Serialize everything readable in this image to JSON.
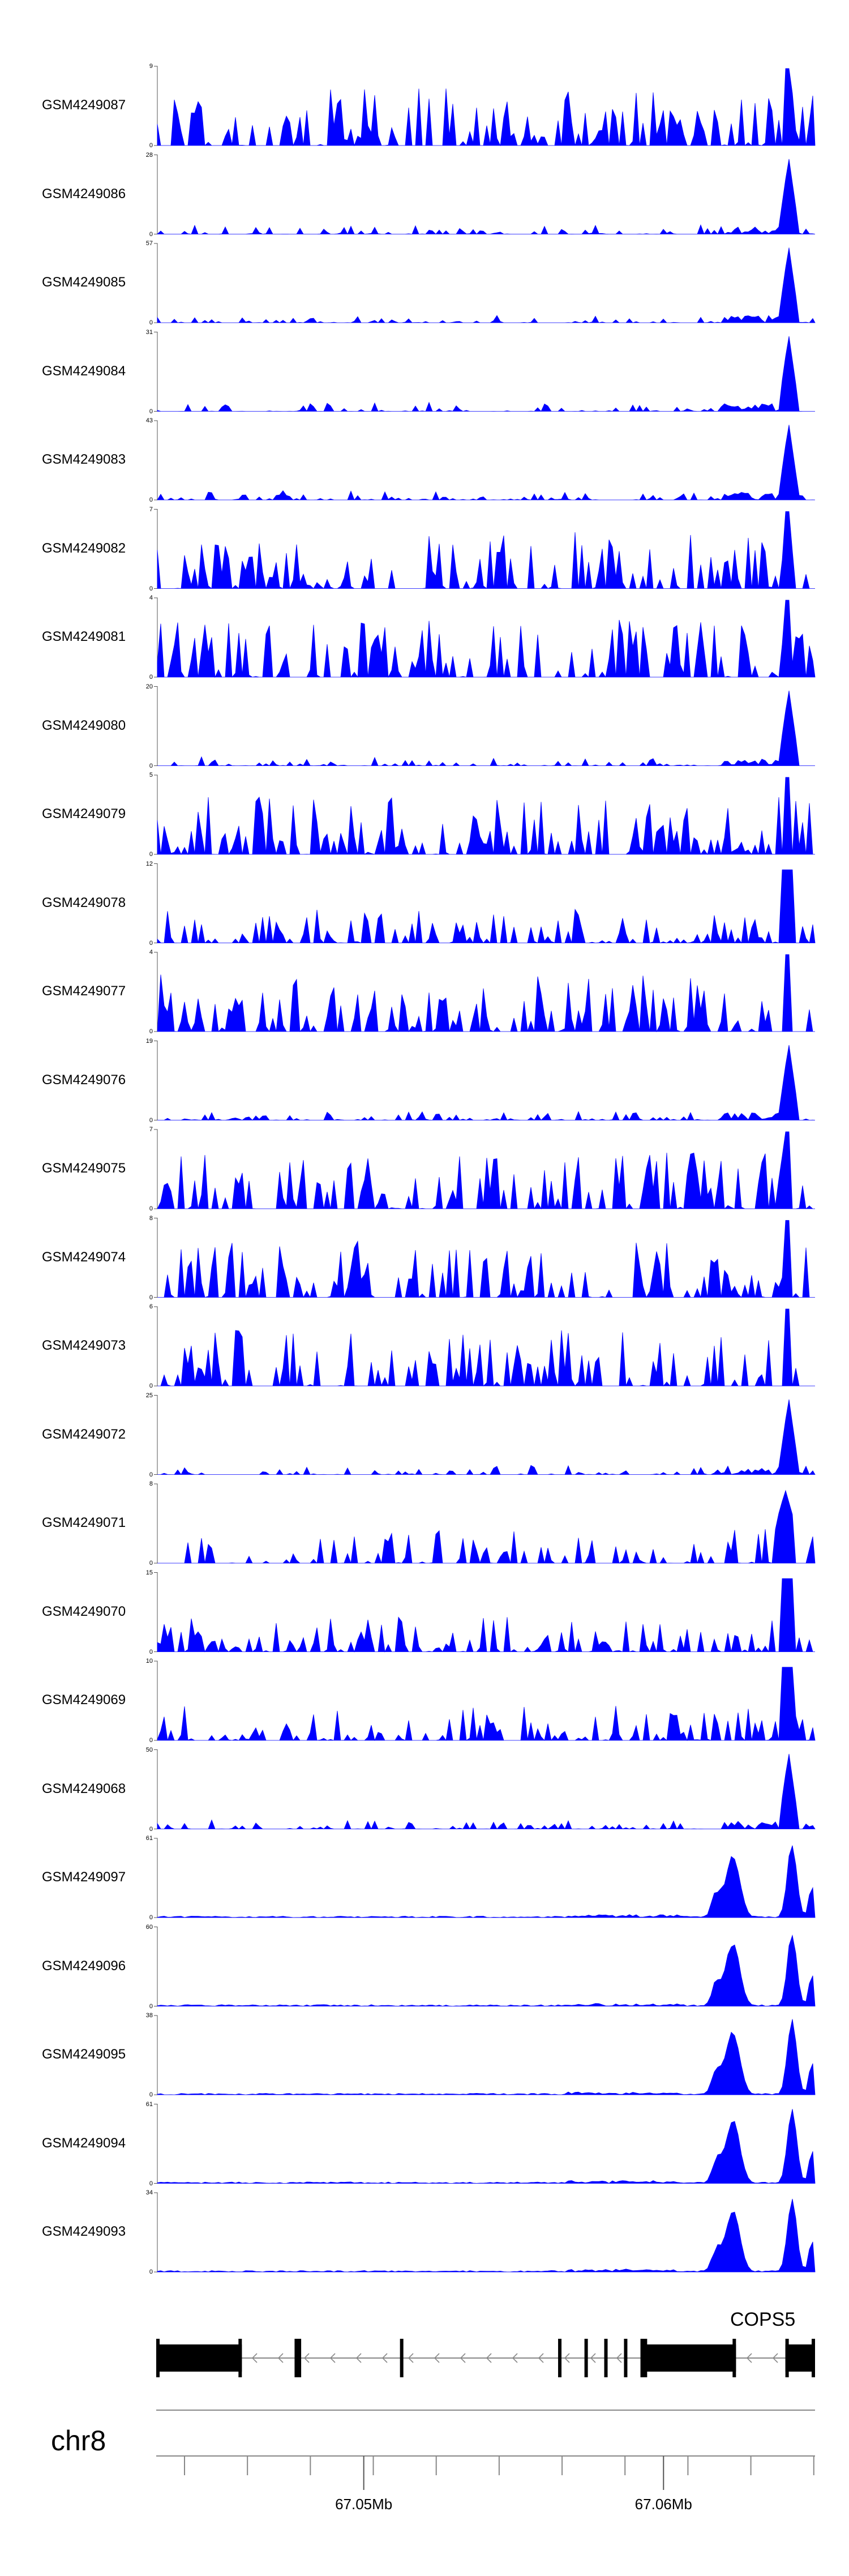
{
  "chart_data": {
    "type": "area",
    "x_range_label": "",
    "tracks": [
      {
        "name": "GSM4249087",
        "ymin": 0,
        "ymax": 9,
        "pattern": "dense",
        "color": "#0000ff"
      },
      {
        "name": "GSM4249086",
        "ymin": 0,
        "ymax": 28,
        "pattern": "peak",
        "color": "#0000ff"
      },
      {
        "name": "GSM4249085",
        "ymin": 0,
        "ymax": 57,
        "pattern": "peak",
        "color": "#0000ff"
      },
      {
        "name": "GSM4249084",
        "ymin": 0,
        "ymax": 31,
        "pattern": "peak",
        "color": "#0000ff"
      },
      {
        "name": "GSM4249083",
        "ymin": 0,
        "ymax": 43,
        "pattern": "peak",
        "color": "#0000ff"
      },
      {
        "name": "GSM4249082",
        "ymin": 0,
        "ymax": 7,
        "pattern": "dense",
        "color": "#0000ff"
      },
      {
        "name": "GSM4249081",
        "ymin": 0,
        "ymax": 4,
        "pattern": "dense",
        "color": "#0000ff"
      },
      {
        "name": "GSM4249080",
        "ymin": 0,
        "ymax": 20,
        "pattern": "peak",
        "color": "#0000ff"
      },
      {
        "name": "GSM4249079",
        "ymin": 0,
        "ymax": 5,
        "pattern": "dense",
        "color": "#0000ff"
      },
      {
        "name": "GSM4249078",
        "ymin": 0,
        "ymax": 12,
        "pattern": "medium",
        "color": "#0000ff"
      },
      {
        "name": "GSM4249077",
        "ymin": 0,
        "ymax": 4,
        "pattern": "dense",
        "color": "#0000ff"
      },
      {
        "name": "GSM4249076",
        "ymin": 0,
        "ymax": 19,
        "pattern": "peak",
        "color": "#0000ff"
      },
      {
        "name": "GSM4249075",
        "ymin": 0,
        "ymax": 7,
        "pattern": "dense",
        "color": "#0000ff"
      },
      {
        "name": "GSM4249074",
        "ymin": 0,
        "ymax": 8,
        "pattern": "dense",
        "color": "#0000ff"
      },
      {
        "name": "GSM4249073",
        "ymin": 0,
        "ymax": 6,
        "pattern": "dense",
        "color": "#0000ff"
      },
      {
        "name": "GSM4249072",
        "ymin": 0,
        "ymax": 25,
        "pattern": "peak",
        "color": "#0000ff"
      },
      {
        "name": "GSM4249071",
        "ymin": 0,
        "ymax": 8,
        "pattern": "sparse",
        "color": "#0000ff"
      },
      {
        "name": "GSM4249070",
        "ymin": 0,
        "ymax": 15,
        "pattern": "medium",
        "color": "#0000ff"
      },
      {
        "name": "GSM4249069",
        "ymin": 0,
        "ymax": 10,
        "pattern": "medium",
        "color": "#0000ff"
      },
      {
        "name": "GSM4249068",
        "ymin": 0,
        "ymax": 50,
        "pattern": "peak",
        "color": "#0000ff"
      },
      {
        "name": "GSM4249097",
        "ymin": 0,
        "ymax": 61,
        "pattern": "twin",
        "color": "#0000ff"
      },
      {
        "name": "GSM4249096",
        "ymin": 0,
        "ymax": 60,
        "pattern": "twin",
        "color": "#0000ff"
      },
      {
        "name": "GSM4249095",
        "ymin": 0,
        "ymax": 38,
        "pattern": "twin",
        "color": "#0000ff"
      },
      {
        "name": "GSM4249094",
        "ymin": 0,
        "ymax": 61,
        "pattern": "twin",
        "color": "#0000ff"
      },
      {
        "name": "GSM4249093",
        "ymin": 0,
        "ymax": 34,
        "pattern": "twin",
        "color": "#0000ff"
      }
    ],
    "gene": {
      "name": "COPS5",
      "strand": "-",
      "exons": [
        [
          0,
          0.13
        ],
        [
          0.21,
          0.22
        ],
        [
          0.37,
          0.375
        ],
        [
          0.61,
          0.615
        ],
        [
          0.65,
          0.655
        ],
        [
          0.68,
          0.685
        ],
        [
          0.71,
          0.715
        ],
        [
          0.735,
          0.74
        ],
        [
          0.74,
          0.88
        ],
        [
          0.955,
          1.0
        ]
      ]
    },
    "chromosome": "chr8",
    "ticks": [
      {
        "label": "67.05Mb",
        "pos": 0.315
      },
      {
        "label": "67.06Mb",
        "pos": 0.77
      }
    ],
    "minor_tick_count": 10
  }
}
